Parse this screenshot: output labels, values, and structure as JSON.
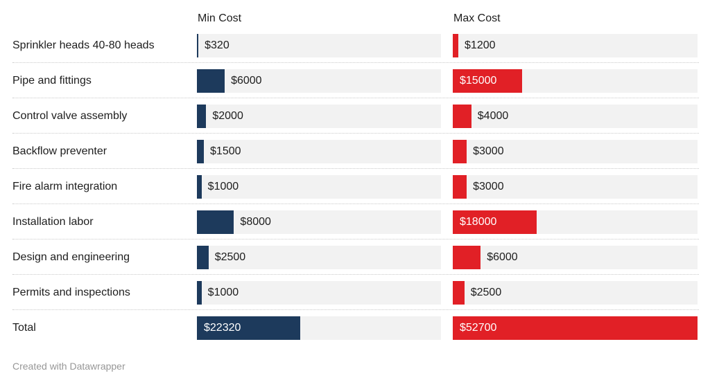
{
  "chart_data": {
    "type": "bar",
    "layout": "split-column-bar-table",
    "categories": [
      "Sprinkler heads 40-80 heads",
      "Pipe and fittings",
      "Control valve assembly",
      "Backflow preventer",
      "Fire alarm integration",
      "Installation labor",
      "Design and engineering",
      "Permits and inspections",
      "Total"
    ],
    "series": [
      {
        "name": "Min Cost",
        "color": "#1d3a5c",
        "values": [
          320,
          6000,
          2000,
          1500,
          1000,
          8000,
          2500,
          1000,
          22320
        ]
      },
      {
        "name": "Max Cost",
        "color": "#e12026",
        "values": [
          1200,
          15000,
          4000,
          3000,
          3000,
          18000,
          6000,
          2500,
          52700
        ]
      }
    ],
    "value_prefix": "$",
    "xlim": [
      0,
      52700
    ],
    "xmax": 52700,
    "grid": false,
    "legend_position": "column-headers",
    "track_color": "#f2f2f2",
    "separator_color": "#c9c9c9",
    "inside_label_color": "#ffffff",
    "title": "",
    "xlabel": "",
    "ylabel": ""
  },
  "footer": {
    "credit": "Created with Datawrapper"
  }
}
